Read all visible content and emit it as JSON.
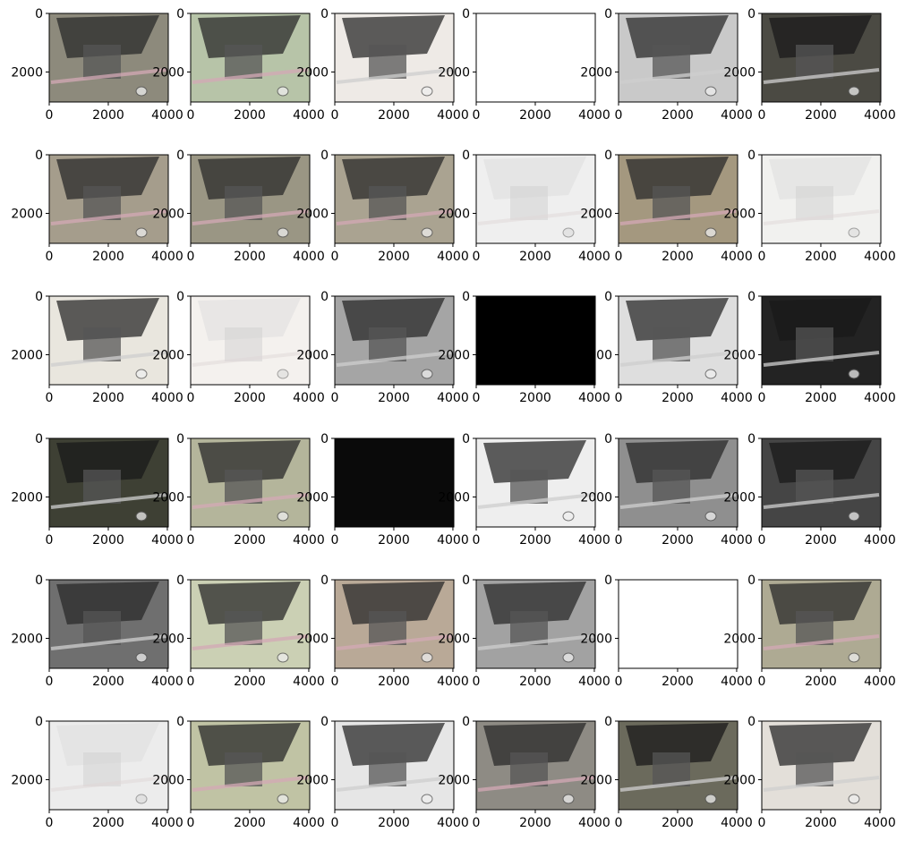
{
  "chart_data": {
    "type": "image-grid",
    "rows": 6,
    "cols": 6,
    "x_ticks": [
      "0",
      "2000",
      "4000"
    ],
    "y_ticks": [
      "0",
      "2000"
    ],
    "x_tick_values": [
      0,
      2000,
      4000
    ],
    "y_tick_values": [
      0,
      2000
    ],
    "xlim": [
      0,
      4032
    ],
    "ylim": [
      3024,
      0
    ],
    "panels": [
      {
        "style": "color",
        "bg": "#8d8a7c"
      },
      {
        "style": "color",
        "bg": "#b7c4a8"
      },
      {
        "style": "bright",
        "bg": "#eeeae6"
      },
      {
        "style": "blank",
        "bg": "#ffffff"
      },
      {
        "style": "gray",
        "bg": "#c9c9c9"
      },
      {
        "style": "dark",
        "bg": "#4b4a43"
      },
      {
        "style": "color",
        "bg": "#a59d8c"
      },
      {
        "style": "color",
        "bg": "#9a9684"
      },
      {
        "style": "color",
        "bg": "#aaa391"
      },
      {
        "style": "faint",
        "bg": "#efefef"
      },
      {
        "style": "color",
        "bg": "#a4987f"
      },
      {
        "style": "faint",
        "bg": "#f1f1ef"
      },
      {
        "style": "bright",
        "bg": "#e9e6de"
      },
      {
        "style": "faint",
        "bg": "#f4f1ee"
      },
      {
        "style": "gray",
        "bg": "#a5a5a5"
      },
      {
        "style": "black",
        "bg": "#000000"
      },
      {
        "style": "bright",
        "bg": "#dedede"
      },
      {
        "style": "dark",
        "bg": "#232323"
      },
      {
        "style": "dark",
        "bg": "#3e4034"
      },
      {
        "style": "color",
        "bg": "#b4b59b"
      },
      {
        "style": "black",
        "bg": "#0a0a0a"
      },
      {
        "style": "bright",
        "bg": "#eeeeee"
      },
      {
        "style": "gray",
        "bg": "#8f8f8f"
      },
      {
        "style": "dark",
        "bg": "#454545"
      },
      {
        "style": "gray",
        "bg": "#6f6f6f"
      },
      {
        "style": "color",
        "bg": "#cbd0b4"
      },
      {
        "style": "color",
        "bg": "#b9a997"
      },
      {
        "style": "gray",
        "bg": "#a2a2a2"
      },
      {
        "style": "blank",
        "bg": "#ffffff"
      },
      {
        "style": "color",
        "bg": "#aeaa93"
      },
      {
        "style": "faint",
        "bg": "#ececec"
      },
      {
        "style": "color",
        "bg": "#c0c3a4"
      },
      {
        "style": "bright",
        "bg": "#e6e6e6"
      },
      {
        "style": "color",
        "bg": "#8e8b84"
      },
      {
        "style": "dark",
        "bg": "#6b6a5c"
      },
      {
        "style": "bright",
        "bg": "#e3dfd9"
      }
    ]
  }
}
